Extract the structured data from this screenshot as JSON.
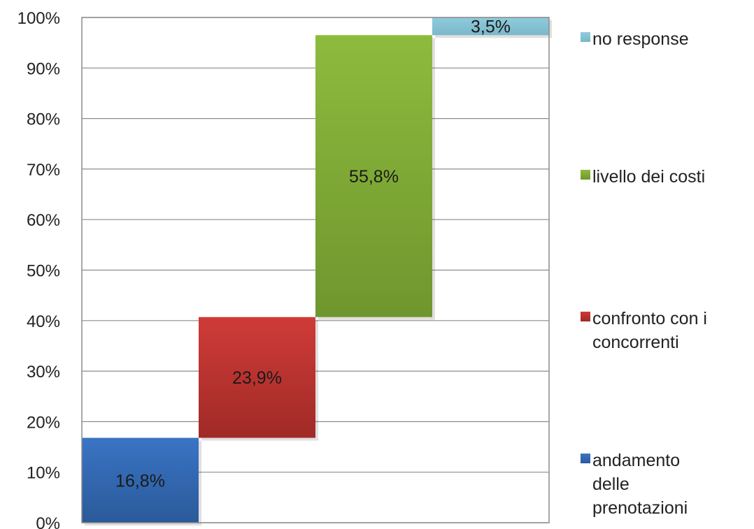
{
  "chart_data": {
    "type": "bar",
    "title": "",
    "xlabel": "",
    "ylabel": "",
    "ylim": [
      0,
      100
    ],
    "yticks": [
      "0%",
      "10%",
      "20%",
      "30%",
      "40%",
      "50%",
      "60%",
      "70%",
      "80%",
      "90%",
      "100%"
    ],
    "grid": true,
    "legend_position": "right",
    "series": [
      {
        "name": "andamento delle prenotazioni",
        "start": 0,
        "value": 16.8,
        "label": "16,8%",
        "color": "#3a74c4",
        "color_dark": "#2a5a9a",
        "legend_lines": [
          "andamento",
          "delle",
          "prenotazioni"
        ]
      },
      {
        "name": "confronto con i concorrenti",
        "start": 16.8,
        "value": 23.9,
        "label": "23,9%",
        "color": "#cf3b37",
        "color_dark": "#a02a27",
        "legend_lines": [
          "confronto con i",
          "concorrenti"
        ]
      },
      {
        "name": "livello dei costi",
        "start": 40.7,
        "value": 55.8,
        "label": "55,8%",
        "color": "#8dbb3d",
        "color_dark": "#6f962e",
        "legend_lines": [
          "livello dei costi"
        ]
      },
      {
        "name": "no response",
        "start": 96.5,
        "value": 3.5,
        "label": "3,5%",
        "color": "#8fcbdc",
        "color_dark": "#7ab8ca",
        "legend_lines": [
          "no response"
        ]
      }
    ]
  }
}
